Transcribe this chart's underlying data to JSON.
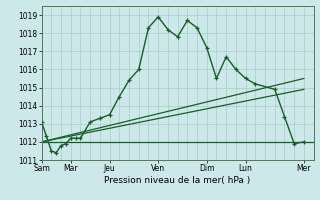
{
  "title": "",
  "xlabel": "Pression niveau de la mer( hPa )",
  "background_color": "#cce8e8",
  "grid_color": "#aacccc",
  "line_color": "#1a5c28",
  "ylim": [
    1011,
    1019.5
  ],
  "yticks": [
    1011,
    1012,
    1013,
    1014,
    1015,
    1016,
    1017,
    1018,
    1019
  ],
  "day_labels": [
    "Sam",
    "Mar",
    "Jeu",
    "Ven",
    "Dim",
    "Lun",
    "Mer"
  ],
  "day_positions": [
    0,
    3,
    7,
    12,
    17,
    21,
    27
  ],
  "xlim": [
    0,
    28
  ],
  "series1_x": [
    0,
    0.5,
    1,
    1.5,
    2,
    2.5,
    3,
    3.5,
    4,
    5,
    6,
    7,
    8,
    9,
    10,
    11,
    12,
    13,
    14,
    15,
    16,
    17,
    18,
    19,
    20,
    21,
    22,
    24,
    25,
    26,
    27
  ],
  "series1_y": [
    1013.1,
    1012.3,
    1011.5,
    1011.4,
    1011.8,
    1011.9,
    1012.2,
    1012.2,
    1012.2,
    1013.1,
    1013.3,
    1013.5,
    1014.5,
    1015.4,
    1016.0,
    1018.3,
    1018.9,
    1018.2,
    1017.8,
    1018.7,
    1018.3,
    1017.2,
    1015.5,
    1016.7,
    1016.0,
    1015.5,
    1015.2,
    1014.9,
    1013.4,
    1011.9,
    1012.0
  ],
  "series2_x": [
    0,
    28
  ],
  "series2_y": [
    1012.0,
    1012.0
  ],
  "series3_x": [
    0,
    27
  ],
  "series3_y": [
    1012.0,
    1015.5
  ],
  "series4_x": [
    0,
    27
  ],
  "series4_y": [
    1012.0,
    1014.9
  ]
}
